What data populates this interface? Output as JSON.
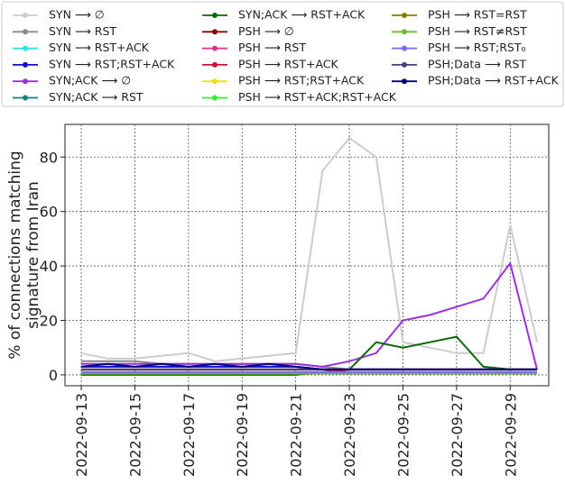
{
  "chart_data": {
    "type": "line",
    "ylabel": [
      "% of connections matching",
      "signature from Iran"
    ],
    "x": [
      "2022-09-13",
      "2022-09-14",
      "2022-09-15",
      "2022-09-16",
      "2022-09-17",
      "2022-09-18",
      "2022-09-19",
      "2022-09-20",
      "2022-09-21",
      "2022-09-22",
      "2022-09-23",
      "2022-09-24",
      "2022-09-25",
      "2022-09-26",
      "2022-09-27",
      "2022-09-28",
      "2022-09-29",
      "2022-09-30"
    ],
    "xlim": [
      "2022-09-13",
      "2022-09-30"
    ],
    "xticks": [
      "2022-09-13",
      "2022-09-15",
      "2022-09-17",
      "2022-09-19",
      "2022-09-21",
      "2022-09-23",
      "2022-09-25",
      "2022-09-27",
      "2022-09-29"
    ],
    "ylim": [
      -4,
      92
    ],
    "yticks": [
      0,
      20,
      40,
      60,
      80
    ],
    "grid": true,
    "series": [
      {
        "name": "SYN ⟶ ∅",
        "color": "#cccccc",
        "values": [
          8,
          6,
          6,
          7,
          8,
          5,
          6,
          7,
          8,
          75,
          87,
          80,
          12,
          10,
          8,
          8,
          55,
          12
        ]
      },
      {
        "name": "SYN ⟶ RST",
        "color": "#888888",
        "values": [
          5,
          5,
          5,
          4,
          4,
          4,
          4,
          4,
          4,
          3,
          2,
          2,
          2,
          2,
          2,
          2,
          2,
          2
        ]
      },
      {
        "name": "SYN ⟶ RST+ACK",
        "color": "#22e5e5",
        "values": [
          1,
          1,
          1,
          1,
          1,
          1,
          1,
          1,
          1,
          1,
          1,
          1,
          1,
          1,
          1,
          1,
          1,
          1
        ]
      },
      {
        "name": "SYN ⟶ RST;RST+ACK",
        "color": "#1010d0",
        "values": [
          3,
          3,
          3,
          3,
          3,
          3,
          3,
          3,
          3,
          2,
          2,
          2,
          2,
          2,
          2,
          2,
          2,
          2
        ]
      },
      {
        "name": "SYN;ACK ⟶ ∅",
        "color": "#9b30e0",
        "values": [
          4,
          4,
          4,
          4,
          4,
          4,
          4,
          4,
          4,
          3,
          5,
          8,
          20,
          22,
          25,
          28,
          41,
          2
        ]
      },
      {
        "name": "SYN;ACK ⟶ RST",
        "color": "#138080",
        "values": [
          1,
          1,
          1,
          1,
          1,
          1,
          1,
          1,
          1,
          1,
          1,
          1,
          1,
          1,
          1,
          1,
          1,
          1
        ]
      },
      {
        "name": "SYN;ACK ⟶ RST+ACK",
        "color": "#0a6a0a",
        "values": [
          0,
          0,
          0,
          0,
          0,
          0,
          0,
          0,
          0,
          1,
          2,
          12,
          10,
          12,
          14,
          3,
          2,
          2
        ]
      },
      {
        "name": "PSH ⟶ ∅",
        "color": "#8b0000",
        "values": [
          2,
          2,
          2,
          2,
          2,
          2,
          2,
          2,
          2,
          2,
          2,
          2,
          2,
          2,
          2,
          2,
          2,
          2
        ]
      },
      {
        "name": "PSH ⟶ RST",
        "color": "#e0308a",
        "values": [
          1,
          1,
          1,
          1,
          1,
          1,
          1,
          1,
          1,
          1,
          1,
          1,
          1,
          1,
          1,
          1,
          1,
          1
        ]
      },
      {
        "name": "PSH ⟶ RST+ACK",
        "color": "#d0103a",
        "values": [
          2,
          2,
          2,
          2,
          2,
          2,
          2,
          2,
          2,
          2,
          1,
          1,
          1,
          1,
          1,
          1,
          1,
          1
        ]
      },
      {
        "name": "PSH ⟶ RST;RST+ACK",
        "color": "#f0e000",
        "values": [
          0.5,
          0.5,
          0.5,
          0.5,
          0.5,
          0.5,
          0.5,
          0.5,
          0.5,
          0.5,
          0.5,
          0.5,
          0.5,
          0.5,
          0.5,
          0.5,
          0.5,
          0.5
        ]
      },
      {
        "name": "PSH ⟶ RST+ACK;RST+ACK",
        "color": "#30f030",
        "values": [
          0.5,
          0.5,
          0.5,
          0.5,
          0.5,
          0.5,
          0.5,
          0.5,
          0.5,
          0.5,
          0.5,
          0.5,
          0.5,
          0.5,
          0.5,
          0.5,
          0.5,
          0.5
        ]
      },
      {
        "name": "PSH ⟶ RST=RST",
        "color": "#808000",
        "values": [
          0.5,
          0.5,
          0.5,
          0.5,
          0.5,
          0.5,
          0.5,
          0.5,
          0.5,
          0.5,
          0.5,
          0.5,
          0.5,
          0.5,
          0.5,
          0.5,
          0.5,
          0.5
        ]
      },
      {
        "name": "PSH ⟶ RST≠RST",
        "color": "#6abf30",
        "values": [
          0.5,
          0.5,
          0.5,
          0.5,
          0.5,
          0.5,
          0.5,
          0.5,
          0.5,
          0.5,
          0.5,
          0.5,
          0.5,
          0.5,
          0.5,
          0.5,
          0.5,
          0.5
        ]
      },
      {
        "name": "PSH ⟶ RST;RST₀",
        "color": "#7b68ee",
        "values": [
          1,
          1,
          1,
          1,
          1,
          1,
          1,
          1,
          1,
          1,
          1,
          1,
          1,
          1,
          1,
          1,
          1,
          1
        ]
      },
      {
        "name": "PSH;Data ⟶ RST",
        "color": "#483d8b",
        "values": [
          2,
          2,
          2,
          2,
          2,
          2,
          2,
          2,
          2,
          2,
          2,
          2,
          2,
          2,
          2,
          2,
          2,
          2
        ]
      },
      {
        "name": "PSH;Data ⟶ RST+ACK",
        "color": "#00007a",
        "values": [
          3,
          4,
          3,
          4,
          3,
          4,
          3,
          4,
          3,
          2,
          2,
          2,
          2,
          2,
          2,
          2,
          2,
          2
        ]
      }
    ]
  }
}
